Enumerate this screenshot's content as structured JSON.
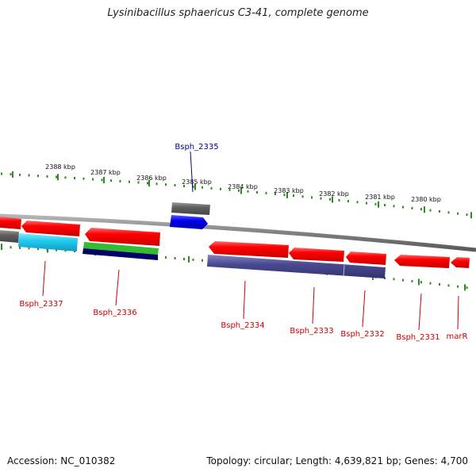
{
  "title": "Lysinibacillus sphaericus C3-41, complete genome",
  "footer": {
    "accession": "Accession: NC_010382",
    "summary": "Topology: circular; Length: 4,639,821 bp; Genes: 4,700"
  },
  "scale": {
    "tick_color": "#2e8b22",
    "labels": [
      "2388 kbp",
      "2387 kbp",
      "2386 kbp",
      "2385 kbp",
      "2384 kbp",
      "2383 kbp",
      "2382 kbp",
      "2381 kbp",
      "2380 kbp"
    ]
  },
  "genes": [
    {
      "name": "Bsph_2335",
      "color": "#00008b",
      "strand": "forward"
    },
    {
      "name": "Bsph_2337",
      "color": "#cc0000",
      "strand": "reverse"
    },
    {
      "name": "Bsph_2336",
      "color": "#cc0000",
      "strand": "reverse"
    },
    {
      "name": "Bsph_2334",
      "color": "#cc0000",
      "strand": "reverse"
    },
    {
      "name": "Bsph_2333",
      "color": "#cc0000",
      "strand": "reverse"
    },
    {
      "name": "Bsph_2332",
      "color": "#cc0000",
      "strand": "reverse"
    },
    {
      "name": "Bsph_2331",
      "color": "#cc0000",
      "strand": "reverse"
    },
    {
      "name": "marR",
      "color": "#cc0000",
      "strand": "reverse"
    }
  ],
  "feature_colors": {
    "cds_red": "#ff0000",
    "gene_gray": "#666666",
    "forward_blue": "#0000ee",
    "cyan": "#22ccee",
    "green": "#33bb33",
    "navy": "#000066",
    "slate": "#4a4a90",
    "backbone": "#808080"
  }
}
